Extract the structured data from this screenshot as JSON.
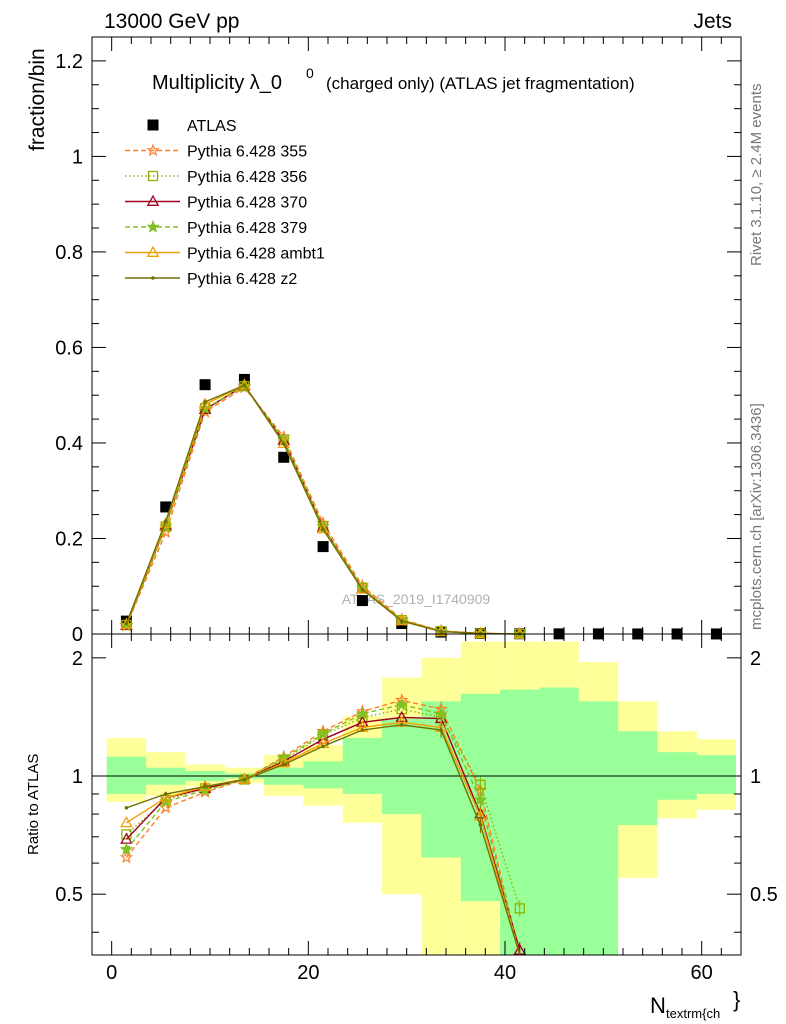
{
  "header": {
    "left": "13000 GeV pp",
    "right": "Jets"
  },
  "title": {
    "main": "Multiplicity λ_0",
    "sup": "0",
    "rest": "(charged only) (ATLAS jet fragmentation)"
  },
  "side_label_top": "Rivet 3.1.10, ≥ 2.4M events",
  "side_label_bottom": "mcplots.cern.ch [arXiv:1306.3436]",
  "watermark": "ATLAS_2019_I1740909",
  "colors": {
    "p355": "#ff7f27",
    "p356": "#8cb400",
    "p370": "#a0001e",
    "p379": "#80c020",
    "ambt1": "#f0a000",
    "z2": "#707000",
    "band_inner": "#99ff99",
    "band_outer": "#ffff99"
  },
  "chart_data": [
    {
      "type": "scatter",
      "ylabel": "fraction/bin",
      "xlabel": "N_textrm{ch}",
      "xlim": [
        -2,
        64
      ],
      "ylim": [
        0,
        1.25
      ],
      "yticks": [
        "0",
        "0.2",
        "0.4",
        "0.6",
        "0.8",
        "1",
        "1.2"
      ],
      "x": [
        1.5,
        5.5,
        9.5,
        13.5,
        17.5,
        21.5,
        25.5,
        29.5,
        33.5,
        37.5,
        41.5,
        45.5,
        49.5,
        53.5,
        57.5,
        61.5
      ],
      "series": [
        {
          "name": "ATLAS",
          "key": "atlas",
          "marker": "square-filled",
          "values": [
            0.027,
            0.266,
            0.522,
            0.533,
            0.37,
            0.183,
            0.07,
            0.022,
            0.004,
            0.001,
            0.0005,
            0.0003,
            0.0002,
            0.0001,
            0.0001,
            0.0001
          ]
        },
        {
          "name": "Pythia 6.428 355",
          "key": "p355",
          "marker": "star-open",
          "dash": "dashed",
          "values": [
            0.017,
            0.213,
            0.465,
            0.516,
            0.413,
            0.232,
            0.101,
            0.031,
            0.006,
            0.001,
            0.0002
          ]
        },
        {
          "name": "Pythia 6.428 356",
          "key": "p356",
          "marker": "square-open",
          "dash": "dotted",
          "values": [
            0.019,
            0.225,
            0.473,
            0.519,
            0.407,
            0.226,
            0.097,
            0.029,
            0.006,
            0.001,
            0.0002
          ]
        },
        {
          "name": "Pythia 6.428 370",
          "key": "p370",
          "marker": "triangle-open",
          "dash": "solid",
          "values": [
            0.018,
            0.228,
            0.47,
            0.52,
            0.405,
            0.224,
            0.095,
            0.028,
            0.006,
            0.001,
            0.0002
          ]
        },
        {
          "name": "Pythia 6.428 379",
          "key": "p379",
          "marker": "star-filled",
          "dash": "dashed",
          "values": [
            0.018,
            0.226,
            0.472,
            0.519,
            0.406,
            0.225,
            0.096,
            0.029,
            0.006,
            0.001,
            0.0002
          ]
        },
        {
          "name": "Pythia 6.428 ambt1",
          "key": "ambt1",
          "marker": "triangle-open",
          "dash": "solid",
          "values": [
            0.02,
            0.231,
            0.481,
            0.521,
            0.399,
            0.22,
            0.094,
            0.028,
            0.006,
            0.001,
            0.0002
          ]
        },
        {
          "name": "Pythia 6.428 z2",
          "key": "z2",
          "marker": "dot",
          "dash": "solid",
          "values": [
            0.022,
            0.236,
            0.486,
            0.521,
            0.398,
            0.219,
            0.093,
            0.027,
            0.005,
            0.001,
            0.0002
          ]
        }
      ]
    },
    {
      "type": "line",
      "ylabel": "Ratio to ATLAS",
      "xlabel": "N_textrm{ch}",
      "xlim": [
        -2,
        64
      ],
      "ylim": [
        0.35,
        2.3
      ],
      "xticks": [
        "0",
        "20",
        "40",
        "60"
      ],
      "yticks": [
        "0.5",
        "1",
        "2"
      ],
      "x": [
        1.5,
        5.5,
        9.5,
        13.5,
        17.5,
        21.5,
        25.5,
        29.5,
        33.5,
        37.5,
        41.5
      ],
      "band_edges": [
        -0.5,
        3.5,
        7.5,
        11.5,
        15.5,
        19.5,
        23.5,
        27.5,
        31.5,
        35.5,
        39.5,
        43.5,
        47.5,
        51.5,
        55.5,
        59.5,
        63.5
      ],
      "band_inner": [
        [
          0.9,
          1.12
        ],
        [
          0.95,
          1.05
        ],
        [
          0.97,
          1.03
        ],
        [
          0.985,
          1.015
        ],
        [
          0.95,
          1.05
        ],
        [
          0.93,
          1.09
        ],
        [
          0.9,
          1.25
        ],
        [
          0.8,
          1.4
        ],
        [
          0.62,
          1.55
        ],
        [
          0.48,
          1.62
        ],
        [
          0.3,
          1.66
        ],
        [
          0.3,
          1.68
        ],
        [
          0.3,
          1.55
        ],
        [
          0.75,
          1.3
        ],
        [
          0.87,
          1.15
        ],
        [
          0.9,
          1.13
        ]
      ],
      "band_outer": [
        [
          0.86,
          1.25
        ],
        [
          0.89,
          1.15
        ],
        [
          0.94,
          1.07
        ],
        [
          0.96,
          1.05
        ],
        [
          0.89,
          1.13
        ],
        [
          0.84,
          1.2
        ],
        [
          0.76,
          1.42
        ],
        [
          0.5,
          1.78
        ],
        [
          0.3,
          2.0
        ],
        [
          0.3,
          2.2
        ],
        [
          0.3,
          2.2
        ],
        [
          0.3,
          2.2
        ],
        [
          0.3,
          1.95
        ],
        [
          0.55,
          1.55
        ],
        [
          0.78,
          1.3
        ],
        [
          0.82,
          1.24
        ]
      ],
      "series": [
        {
          "name": "Pythia 6.428 355",
          "key": "p355",
          "marker": "star-open",
          "dash": "dashed",
          "values": [
            0.62,
            0.83,
            0.91,
            0.98,
            1.12,
            1.3,
            1.46,
            1.56,
            1.48,
            0.92,
            0.3
          ]
        },
        {
          "name": "Pythia 6.428 356",
          "key": "p356",
          "marker": "square-open",
          "dash": "dotted",
          "values": [
            0.71,
            0.87,
            0.93,
            0.98,
            1.1,
            1.27,
            1.41,
            1.48,
            1.41,
            0.95,
            0.46
          ]
        },
        {
          "name": "Pythia 6.428 370",
          "key": "p370",
          "marker": "triangle-open",
          "dash": "solid",
          "values": [
            0.69,
            0.88,
            0.93,
            0.98,
            1.09,
            1.24,
            1.37,
            1.41,
            1.4,
            0.8,
            0.36
          ]
        },
        {
          "name": "Pythia 6.428 379",
          "key": "p379",
          "marker": "star-filled",
          "dash": "dashed",
          "values": [
            0.65,
            0.86,
            0.92,
            0.98,
            1.11,
            1.28,
            1.44,
            1.52,
            1.44,
            0.87,
            0.3
          ]
        },
        {
          "name": "Pythia 6.428 ambt1",
          "key": "ambt1",
          "marker": "triangle-open",
          "dash": "solid",
          "values": [
            0.76,
            0.88,
            0.94,
            0.98,
            1.08,
            1.21,
            1.33,
            1.37,
            1.33,
            0.79,
            0.3
          ]
        },
        {
          "name": "Pythia 6.428 z2",
          "key": "z2",
          "marker": "dot",
          "dash": "solid",
          "values": [
            0.83,
            0.9,
            0.94,
            0.98,
            1.07,
            1.19,
            1.31,
            1.35,
            1.31,
            0.75,
            0.3
          ]
        }
      ]
    }
  ]
}
